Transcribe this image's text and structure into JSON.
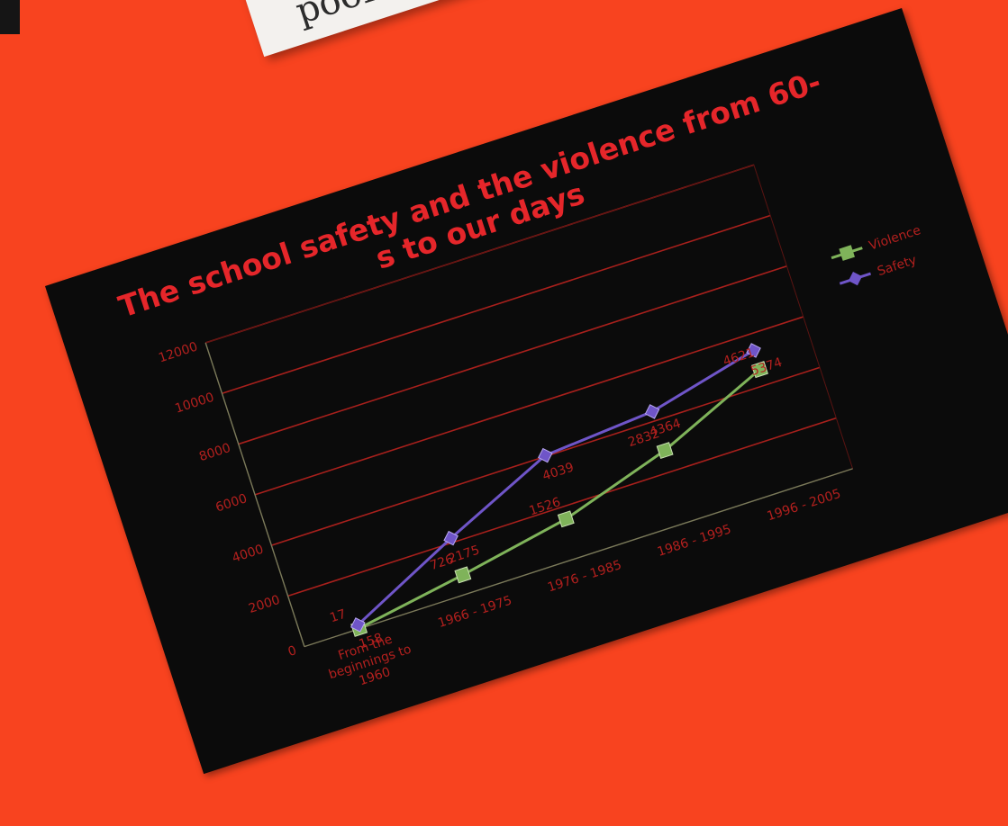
{
  "background_color": "#f8431f",
  "note": {
    "text": "poor vi"
  },
  "chart_data": {
    "type": "line",
    "title": "The school safety and the violence from 60-s to our days",
    "title_lines": [
      "The school safety and the violence from 60-",
      "s to our days"
    ],
    "categories": [
      "From the beginnings to 1960",
      "1966 - 1975",
      "1976 - 1985",
      "1986 - 1995",
      "1996 - 2005"
    ],
    "x_tick_lines": [
      [
        "From the",
        "beginnings to",
        "1960"
      ],
      [
        "1966 - 1975"
      ],
      [
        "1976 - 1985"
      ],
      [
        "1986 - 1995"
      ],
      [
        "1996 - 2005"
      ]
    ],
    "y_ticks": [
      "0",
      "2000",
      "4000",
      "6000",
      "8000",
      "10000",
      "12000"
    ],
    "ylim": [
      0,
      12000
    ],
    "grid": true,
    "legend_position": "right",
    "series": [
      {
        "name": "Violence",
        "color": "#7fb35a",
        "values": [
          17,
          726,
          1526,
          2832,
          4621
        ],
        "labels": [
          "17",
          "726",
          "1526",
          "2832",
          "4621"
        ]
      },
      {
        "name": "Safety",
        "color": "#6f55c8",
        "values": [
          158,
          2175,
          4039,
          4364,
          5374
        ],
        "labels": [
          "158",
          "2175",
          "4039",
          "4364",
          "5374"
        ]
      }
    ]
  }
}
